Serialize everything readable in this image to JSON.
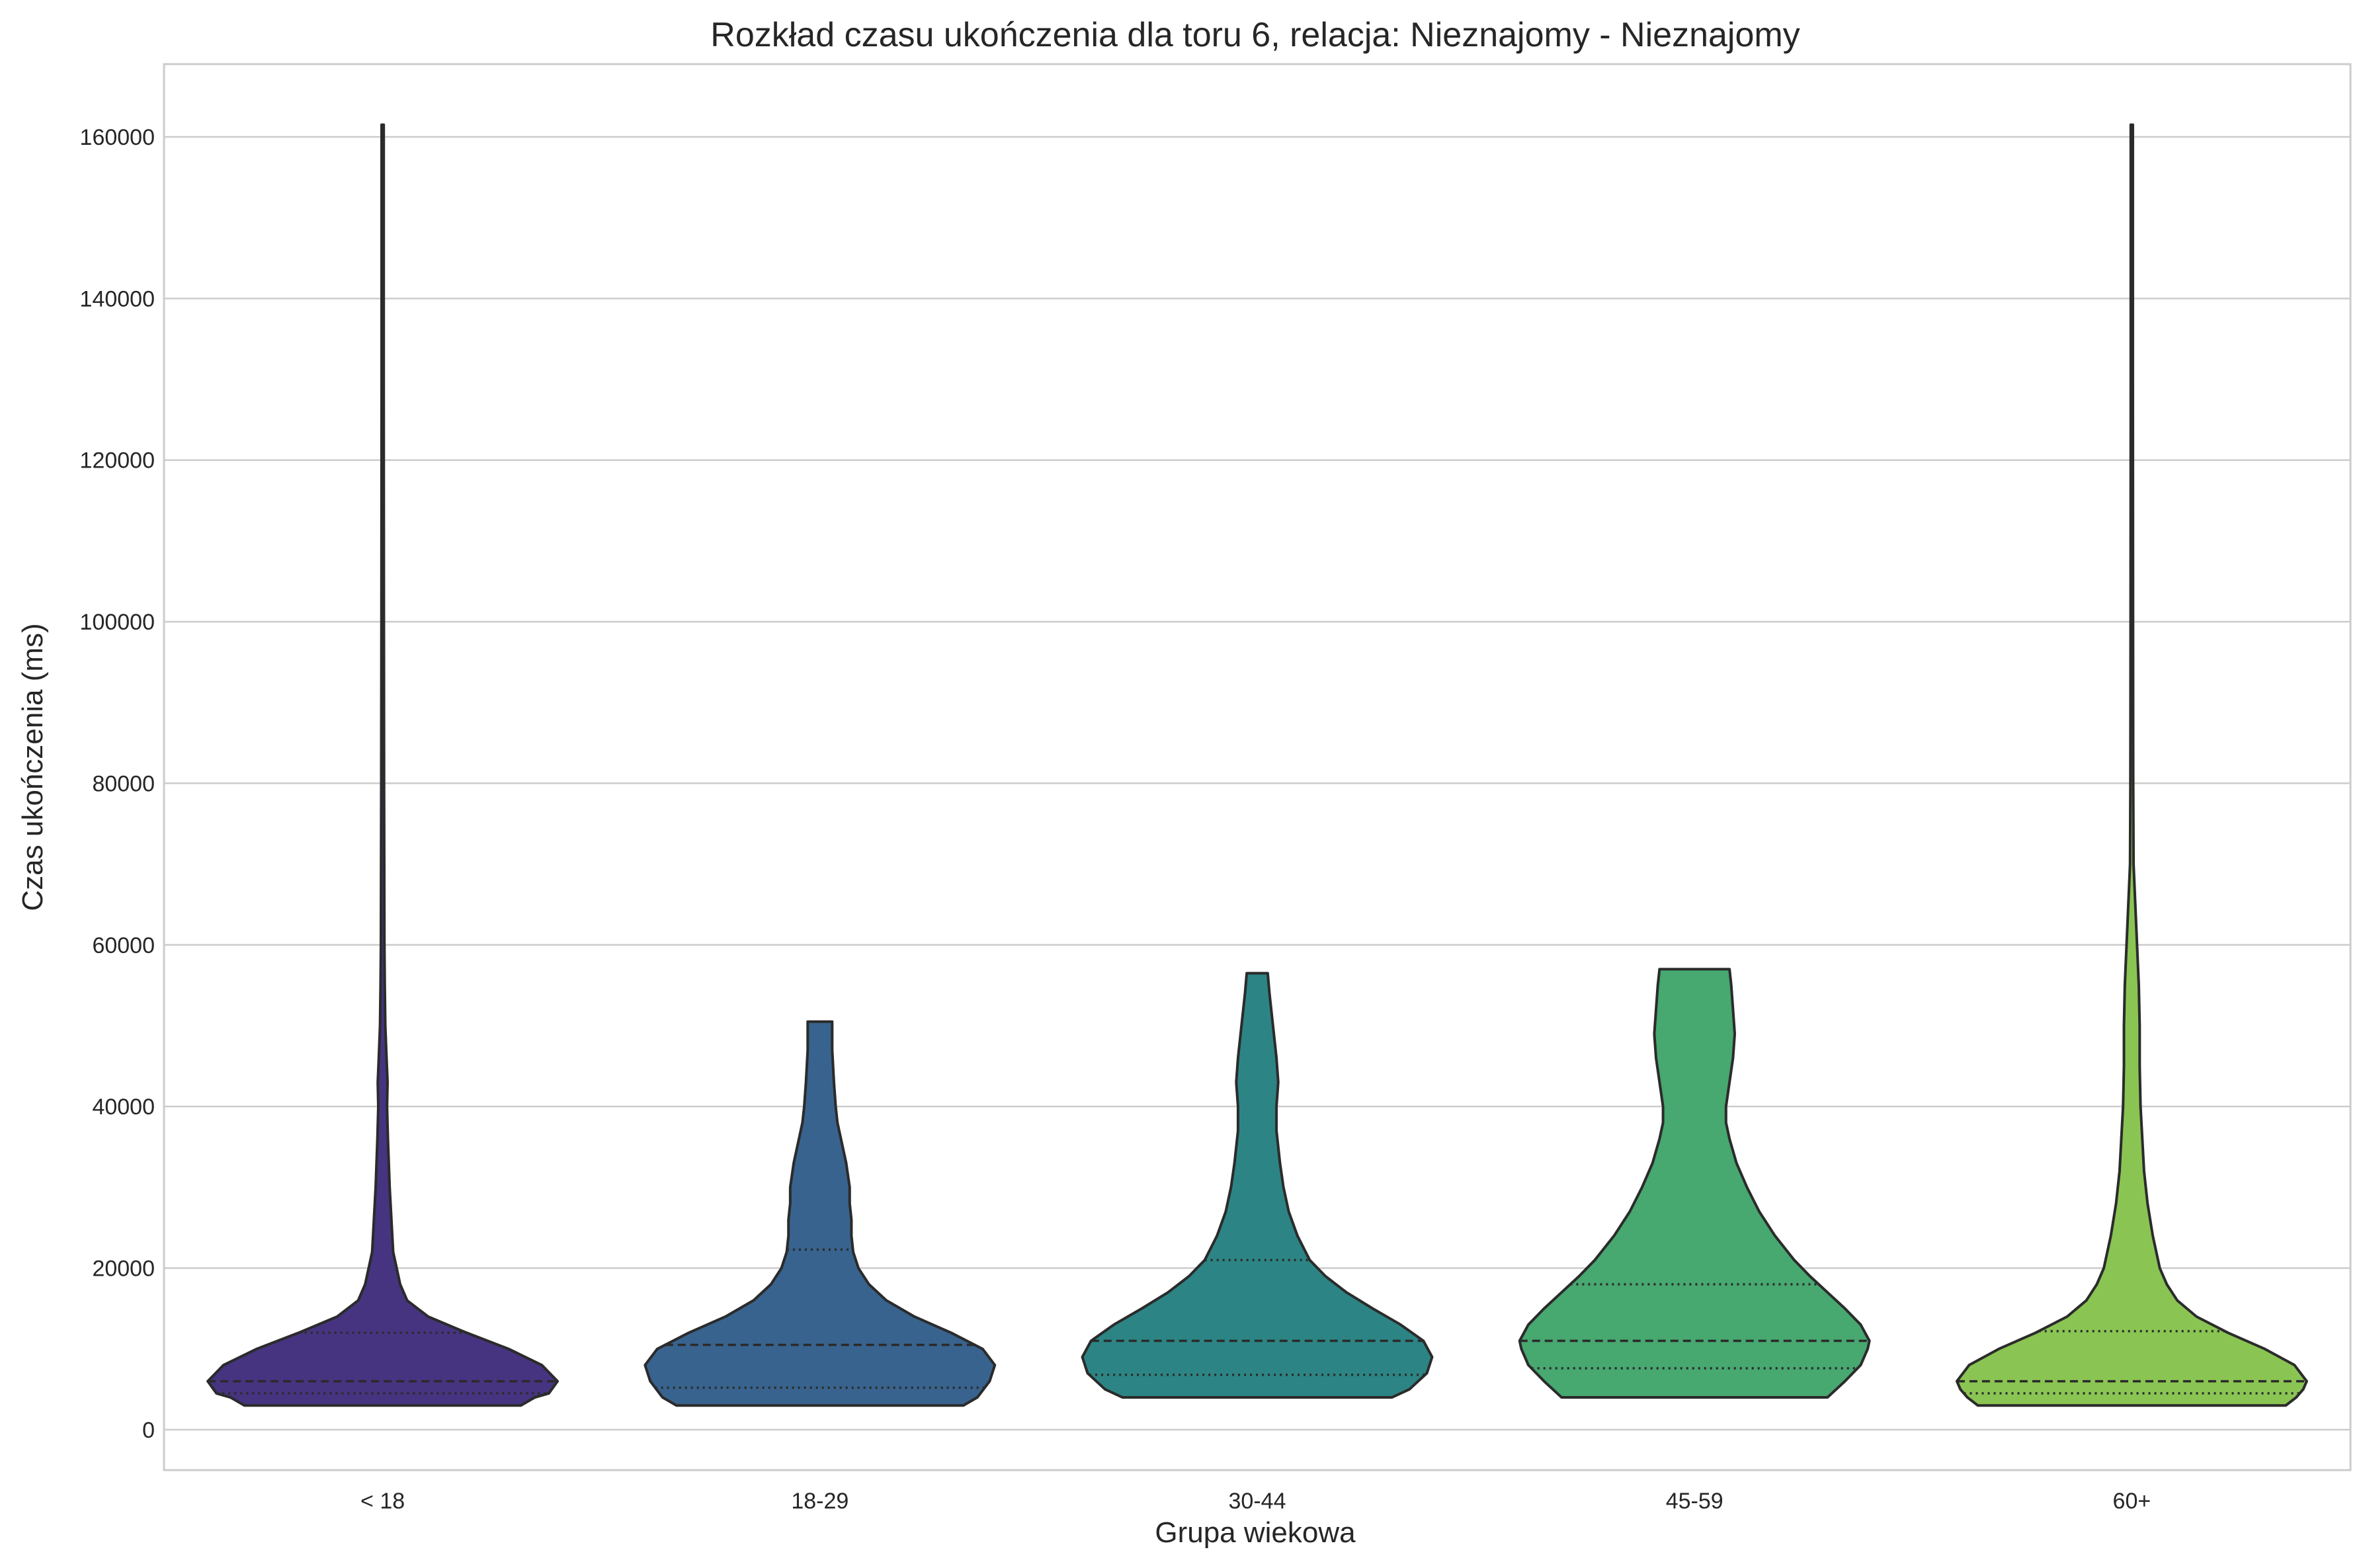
{
  "chart_data": {
    "type": "violin",
    "title": "Rozkład czasu ukończenia dla toru 6, relacja: Nieznajomy - Nieznajomy",
    "xlabel": "Grupa wiekowa",
    "ylabel": "Czas ukończenia (ms)",
    "ylim": [
      -5000,
      169000
    ],
    "yticks": [
      0,
      20000,
      40000,
      60000,
      80000,
      100000,
      120000,
      140000,
      160000
    ],
    "grid": "horizontal",
    "inner": "quartile",
    "categories": [
      "< 18",
      "18-29",
      "30-44",
      "45-59",
      "60+"
    ],
    "series": [
      {
        "name": "< 18",
        "color": "#463480",
        "min": 3000,
        "max": 161500,
        "q1": 4500,
        "median": 6000,
        "q3": 12000,
        "profile": [
          [
            3000,
            0.79
          ],
          [
            4000,
            0.87
          ],
          [
            4500,
            0.95
          ],
          [
            6000,
            1.0
          ],
          [
            8000,
            0.91
          ],
          [
            10000,
            0.72
          ],
          [
            12000,
            0.48
          ],
          [
            14000,
            0.26
          ],
          [
            16000,
            0.14
          ],
          [
            18000,
            0.1
          ],
          [
            22000,
            0.06
          ],
          [
            26000,
            0.05
          ],
          [
            30000,
            0.04
          ],
          [
            36000,
            0.03
          ],
          [
            40000,
            0.025
          ],
          [
            43000,
            0.028
          ],
          [
            45000,
            0.024
          ],
          [
            50000,
            0.015
          ],
          [
            55000,
            0.012
          ],
          [
            60000,
            0.01
          ],
          [
            80000,
            0.008
          ],
          [
            100000,
            0.007
          ],
          [
            130000,
            0.006
          ],
          [
            161500,
            0.006
          ]
        ]
      },
      {
        "name": "18-29",
        "color": "#38638e",
        "min": 3000,
        "max": 50500,
        "q1": 5200,
        "median": 10500,
        "q3": 22300,
        "profile": [
          [
            3000,
            0.82
          ],
          [
            4000,
            0.9
          ],
          [
            6000,
            0.97
          ],
          [
            8000,
            1.0
          ],
          [
            10000,
            0.93
          ],
          [
            12000,
            0.75
          ],
          [
            14000,
            0.54
          ],
          [
            16000,
            0.38
          ],
          [
            18000,
            0.28
          ],
          [
            20000,
            0.22
          ],
          [
            22000,
            0.19
          ],
          [
            24000,
            0.18
          ],
          [
            26000,
            0.18
          ],
          [
            28000,
            0.17
          ],
          [
            30000,
            0.17
          ],
          [
            33000,
            0.15
          ],
          [
            36000,
            0.12
          ],
          [
            38000,
            0.1
          ],
          [
            40000,
            0.09
          ],
          [
            43000,
            0.08
          ],
          [
            47000,
            0.07
          ],
          [
            50500,
            0.07
          ]
        ]
      },
      {
        "name": "30-44",
        "color": "#2c8584",
        "min": 4000,
        "max": 56500,
        "q1": 6800,
        "median": 11000,
        "q3": 21000,
        "profile": [
          [
            4000,
            0.77
          ],
          [
            5000,
            0.87
          ],
          [
            7000,
            0.97
          ],
          [
            9000,
            1.0
          ],
          [
            11000,
            0.95
          ],
          [
            13000,
            0.82
          ],
          [
            15000,
            0.66
          ],
          [
            17000,
            0.51
          ],
          [
            19000,
            0.39
          ],
          [
            21000,
            0.3
          ],
          [
            24000,
            0.23
          ],
          [
            27000,
            0.18
          ],
          [
            30000,
            0.15
          ],
          [
            33000,
            0.13
          ],
          [
            35000,
            0.12
          ],
          [
            37000,
            0.11
          ],
          [
            40000,
            0.11
          ],
          [
            43000,
            0.12
          ],
          [
            46000,
            0.11
          ],
          [
            50000,
            0.09
          ],
          [
            54000,
            0.07
          ],
          [
            56500,
            0.06
          ]
        ]
      },
      {
        "name": "45-59",
        "color": "#47a870",
        "min": 4000,
        "max": 57000,
        "q1": 7600,
        "median": 11000,
        "q3": 18000,
        "profile": [
          [
            4000,
            0.76
          ],
          [
            6000,
            0.86
          ],
          [
            8000,
            0.95
          ],
          [
            10000,
            0.99
          ],
          [
            11000,
            1.0
          ],
          [
            13000,
            0.95
          ],
          [
            15000,
            0.86
          ],
          [
            17000,
            0.76
          ],
          [
            19000,
            0.66
          ],
          [
            21000,
            0.57
          ],
          [
            24000,
            0.46
          ],
          [
            27000,
            0.37
          ],
          [
            30000,
            0.3
          ],
          [
            33000,
            0.24
          ],
          [
            36000,
            0.2
          ],
          [
            38000,
            0.18
          ],
          [
            40000,
            0.18
          ],
          [
            43000,
            0.2
          ],
          [
            46000,
            0.22
          ],
          [
            49000,
            0.23
          ],
          [
            52000,
            0.22
          ],
          [
            55000,
            0.21
          ],
          [
            57000,
            0.2
          ]
        ]
      },
      {
        "name": "60+",
        "color": "#8ac553",
        "min": 3000,
        "max": 161500,
        "q1": 4500,
        "median": 6000,
        "q3": 12200,
        "profile": [
          [
            3000,
            0.88
          ],
          [
            4000,
            0.94
          ],
          [
            5000,
            0.98
          ],
          [
            6000,
            1.0
          ],
          [
            8000,
            0.93
          ],
          [
            10000,
            0.76
          ],
          [
            12000,
            0.55
          ],
          [
            14000,
            0.37
          ],
          [
            16000,
            0.26
          ],
          [
            18000,
            0.2
          ],
          [
            20000,
            0.16
          ],
          [
            24000,
            0.12
          ],
          [
            28000,
            0.09
          ],
          [
            32000,
            0.07
          ],
          [
            36000,
            0.06
          ],
          [
            40000,
            0.05
          ],
          [
            45000,
            0.045
          ],
          [
            50000,
            0.045
          ],
          [
            55000,
            0.04
          ],
          [
            60000,
            0.03
          ],
          [
            65000,
            0.02
          ],
          [
            70000,
            0.01
          ],
          [
            80000,
            0.008
          ],
          [
            100000,
            0.007
          ],
          [
            130000,
            0.006
          ],
          [
            161500,
            0.006
          ]
        ]
      }
    ]
  }
}
